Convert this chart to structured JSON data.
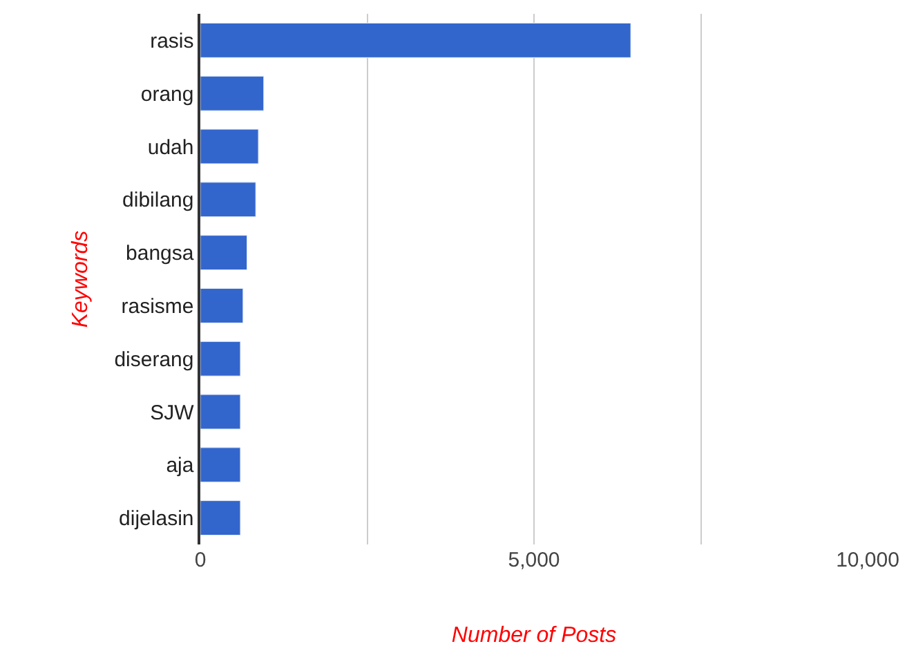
{
  "chart_data": {
    "type": "bar",
    "orientation": "horizontal",
    "xlabel": "Number of Posts",
    "ylabel": "Keywords",
    "categories": [
      "rasis",
      "orang",
      "udah",
      "dibilang",
      "bangsa",
      "rasisme",
      "diserang",
      "SJW",
      "aja",
      "dijelasin"
    ],
    "values": [
      6450,
      950,
      870,
      830,
      700,
      640,
      600,
      600,
      600,
      600
    ],
    "color": "#3366cc",
    "xlim": [
      0,
      10000
    ],
    "xticks": [
      0,
      {
        "value": 2500,
        "label": null
      },
      {
        "value": 5000,
        "label": "5,000"
      },
      {
        "value": 7500,
        "label": null
      },
      {
        "value": 10000,
        "label": "10,000"
      }
    ],
    "grid": "x"
  }
}
